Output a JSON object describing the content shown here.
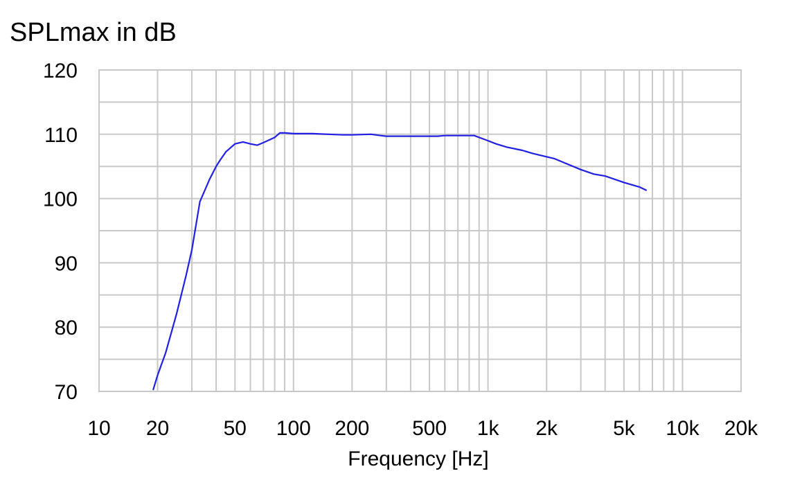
{
  "chart_data": {
    "type": "line",
    "title": "SPLmax in dB",
    "xlabel": "Frequency [Hz]",
    "ylabel": "",
    "x_scale": "log",
    "xlim": [
      10,
      20000
    ],
    "ylim": [
      70,
      120
    ],
    "grid": true,
    "x_ticks": [
      {
        "value": 10,
        "label": "10"
      },
      {
        "value": 20,
        "label": "20"
      },
      {
        "value": 50,
        "label": "50"
      },
      {
        "value": 100,
        "label": "100"
      },
      {
        "value": 200,
        "label": "200"
      },
      {
        "value": 500,
        "label": "500"
      },
      {
        "value": 1000,
        "label": "1k"
      },
      {
        "value": 2000,
        "label": "2k"
      },
      {
        "value": 5000,
        "label": "5k"
      },
      {
        "value": 10000,
        "label": "10k"
      },
      {
        "value": 20000,
        "label": "20k"
      }
    ],
    "y_ticks": [
      {
        "value": 70,
        "label": "70"
      },
      {
        "value": 80,
        "label": "80"
      },
      {
        "value": 90,
        "label": "90"
      },
      {
        "value": 100,
        "label": "100"
      },
      {
        "value": 110,
        "label": "110"
      },
      {
        "value": 120,
        "label": "120"
      }
    ],
    "colors": {
      "line": "#1f1fe6",
      "grid": "#c8c8c8",
      "text": "#000000"
    },
    "series": [
      {
        "x": [
          19,
          20,
          22,
          25,
          28,
          30,
          33,
          37,
          40,
          42,
          45,
          50,
          55,
          60,
          65,
          70,
          80,
          85,
          90,
          100,
          110,
          125,
          150,
          180,
          200,
          250,
          280,
          300,
          350,
          400,
          500,
          550,
          600,
          700,
          800,
          850,
          900,
          1000,
          1100,
          1250,
          1500,
          1700,
          2000,
          2200,
          2500,
          3000,
          3500,
          4000,
          5000,
          6000,
          6500
        ],
        "y": [
          70.3,
          72.5,
          76,
          82,
          88,
          92,
          99.5,
          103,
          105,
          106,
          107.3,
          108.5,
          108.8,
          108.5,
          108.3,
          108.7,
          109.5,
          110.2,
          110.2,
          110.1,
          110.1,
          110.1,
          110,
          109.9,
          109.9,
          110,
          109.8,
          109.7,
          109.7,
          109.7,
          109.7,
          109.7,
          109.8,
          109.8,
          109.8,
          109.8,
          109.5,
          109,
          108.5,
          108,
          107.5,
          107,
          106.5,
          106.2,
          105.5,
          104.5,
          103.8,
          103.5,
          102.5,
          101.8,
          101.3
        ]
      }
    ]
  }
}
